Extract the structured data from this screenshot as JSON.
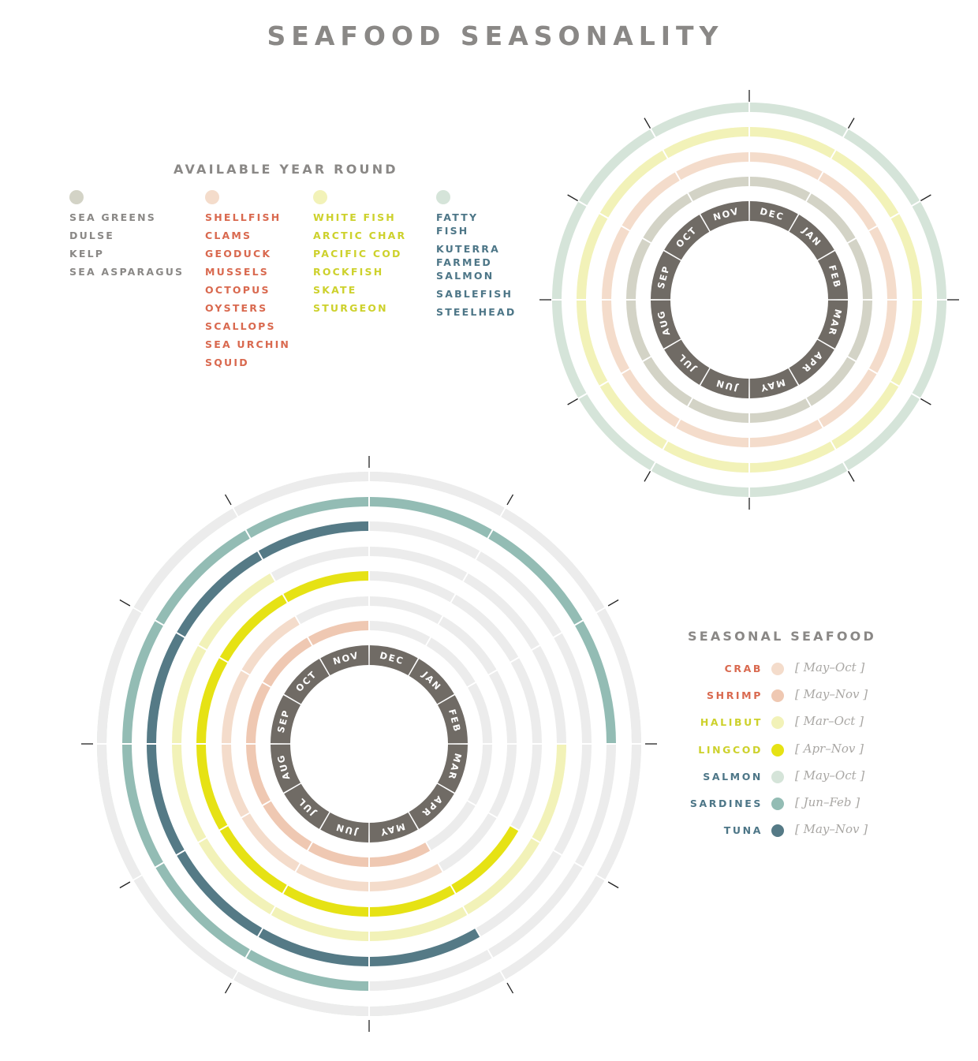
{
  "title": "SEAFOOD SEASONALITY",
  "year_round": {
    "heading": "AVAILABLE YEAR ROUND",
    "groups": [
      {
        "name": "SEA GREENS",
        "color": "#d3d3c6",
        "text_color": "#8a8886",
        "items": [
          "DULSE",
          "KELP",
          "SEA ASPARAGUS"
        ]
      },
      {
        "name": "SHELLFISH",
        "color": "#f4dccb",
        "text_color": "#d9694f",
        "items": [
          "CLAMS",
          "GEODUCK",
          "MUSSELS",
          "OCTOPUS",
          "OYSTERS",
          "SCALLOPS",
          "SEA URCHIN",
          "SQUID"
        ]
      },
      {
        "name": "WHITE FISH",
        "color": "#f2f2b8",
        "text_color": "#cdd12c",
        "items": [
          "ARCTIC CHAR",
          "PACIFIC COD",
          "ROCKFISH",
          "SKATE",
          "STURGEON"
        ]
      },
      {
        "name": "FATTY FISH",
        "color": "#d5e4d9",
        "text_color": "#4d7687",
        "items": [
          "KUTERRA FARMED SALMON",
          "SABLEFISH",
          "STEELHEAD"
        ]
      }
    ]
  },
  "seasonal": {
    "heading": "SEASONAL SEAFOOD",
    "items": [
      {
        "name": "CRAB",
        "range": "[ May–Oct ]",
        "color": "#f4dccb",
        "text_color": "#d9694f"
      },
      {
        "name": "SHRIMP",
        "range": "[ May–Nov ]",
        "color": "#efc8b2",
        "text_color": "#d9694f"
      },
      {
        "name": "HALIBUT",
        "range": "[ Mar–Oct ]",
        "color": "#f2f2b8",
        "text_color": "#cdd12c"
      },
      {
        "name": "LINGCOD",
        "range": "[ Apr–Nov ]",
        "color": "#e6e214",
        "text_color": "#cdd12c"
      },
      {
        "name": "SALMON",
        "range": "[ May–Oct ]",
        "color": "#d5e4d9",
        "text_color": "#4d7687"
      },
      {
        "name": "SARDINES",
        "range": "[ Jun–Feb ]",
        "color": "#93bcb4",
        "text_color": "#4d7687"
      },
      {
        "name": "TUNA",
        "range": "[ May–Nov ]",
        "color": "#557a86",
        "text_color": "#4d7687"
      }
    ]
  },
  "chart_data": [
    {
      "type": "radial-calendar",
      "months": [
        "DEC",
        "JAN",
        "FEB",
        "MAR",
        "APR",
        "MAY",
        "JUN",
        "JUL",
        "AUG",
        "SEP",
        "OCT",
        "NOV"
      ],
      "month_ring_color": "#706b65",
      "rings_inner_to_outer": [
        {
          "series": "SEA GREENS",
          "months": "all",
          "color": "#d3d3c6"
        },
        {
          "series": "SHELLFISH",
          "months": "all",
          "color": "#f4dccb"
        },
        {
          "series": "WHITE FISH",
          "months": "all",
          "color": "#f2f2b8"
        },
        {
          "series": "FATTY FISH",
          "months": "all",
          "color": "#d5e4d9"
        }
      ]
    },
    {
      "type": "radial-calendar",
      "months": [
        "DEC",
        "JAN",
        "FEB",
        "MAR",
        "APR",
        "MAY",
        "JUN",
        "JUL",
        "AUG",
        "SEP",
        "OCT",
        "NOV"
      ],
      "month_ring_color": "#706b65",
      "track_color": "#ececec",
      "rings_inner_to_outer": [
        {
          "series": "SHRIMP",
          "start": "MAY",
          "end": "NOV",
          "color": "#efc8b2"
        },
        {
          "series": "CRAB",
          "start": "MAY",
          "end": "OCT",
          "color": "#f4dccb"
        },
        {
          "series": "LINGCOD",
          "start": "APR",
          "end": "NOV",
          "color": "#e6e214"
        },
        {
          "series": "HALIBUT",
          "start": "MAR",
          "end": "OCT",
          "color": "#f2f2b8"
        },
        {
          "series": "TUNA",
          "start": "MAY",
          "end": "NOV",
          "color": "#557a86"
        },
        {
          "series": "SARDINES",
          "start": "JUN",
          "end": "FEB",
          "color": "#93bcb4"
        },
        {
          "series": "SALMON",
          "start": "MAY",
          "end": "OCT",
          "color": "#d5e4d9"
        },
        {
          "series": "",
          "start": null,
          "end": null,
          "color": "#ececec"
        }
      ]
    }
  ]
}
